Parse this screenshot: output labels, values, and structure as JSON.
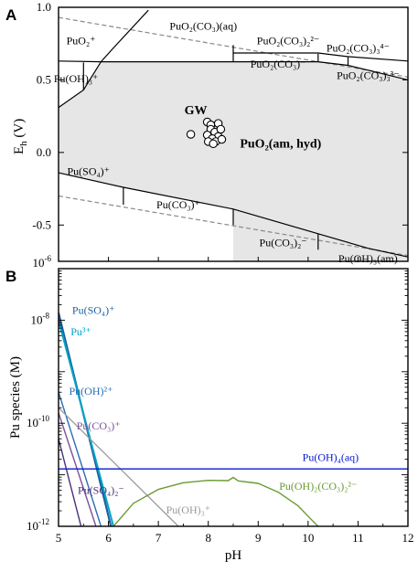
{
  "figure": {
    "panelA_letter": "A",
    "panelB_letter": "B"
  },
  "chart_data": [
    {
      "type": "line",
      "panel": "A",
      "ylabel": "E_h (V)",
      "ylabel_main": "E",
      "ylabel_sub": "h",
      "ylabel_unit": " (V)",
      "xlim": [
        5,
        12
      ],
      "ylim": [
        -0.75,
        1.0
      ],
      "yticks": [
        1.0,
        0.5,
        0.0,
        -0.5
      ],
      "ytick_labels": [
        "1.0",
        "0.5",
        "0.0",
        "-0.5"
      ],
      "bottom_left_label": "10",
      "bottom_left_exp": "-6",
      "grid": false,
      "colors": {
        "field_fill": "#e6e6e6",
        "boundary": "#000000",
        "water_line": "#888888"
      },
      "water_stability_lines": [
        {
          "name": "upper",
          "points": [
            [
              5,
              0.93
            ],
            [
              12,
              0.52
            ]
          ]
        },
        {
          "name": "lower",
          "points": [
            [
              5,
              -0.3
            ],
            [
              12,
              -0.71
            ]
          ]
        }
      ],
      "shaded_field_points": [
        [
          5.85,
          0.625
        ],
        [
          10.2,
          0.625
        ],
        [
          10.8,
          0.6
        ],
        [
          12,
          0.5
        ],
        [
          12,
          -0.75
        ],
        [
          8.5,
          -0.75
        ],
        [
          8.5,
          -0.39
        ],
        [
          6.3,
          -0.24
        ],
        [
          5,
          -0.14
        ],
        [
          5,
          0.31
        ],
        [
          5.5,
          0.43
        ],
        [
          5.85,
          0.625
        ]
      ],
      "boundaries": [
        [
          [
            5.0,
            0.63
          ],
          [
            5.85,
            0.625
          ],
          [
            10.2,
            0.625
          ],
          [
            10.8,
            0.6
          ],
          [
            12,
            0.5
          ]
        ],
        [
          [
            5.0,
            0.31
          ],
          [
            5.5,
            0.43
          ],
          [
            5.85,
            0.625
          ],
          [
            6.1,
            0.72
          ],
          [
            6.8,
            0.98
          ]
        ],
        [
          [
            5.0,
            -0.14
          ],
          [
            6.3,
            -0.24
          ],
          [
            8.5,
            -0.39
          ],
          [
            10.2,
            -0.56
          ],
          [
            11.2,
            -0.66
          ],
          [
            12,
            -0.72
          ]
        ],
        [
          [
            5.5,
            0.43
          ],
          [
            5.5,
            0.62
          ]
        ],
        [
          [
            6.3,
            -0.24
          ],
          [
            6.3,
            -0.36
          ]
        ],
        [
          [
            8.5,
            -0.39
          ],
          [
            8.5,
            -0.5
          ]
        ],
        [
          [
            10.2,
            -0.56
          ],
          [
            10.2,
            -0.67
          ]
        ],
        [
          [
            8.5,
            0.625
          ],
          [
            8.5,
            0.74
          ]
        ],
        [
          [
            10.2,
            0.625
          ],
          [
            10.2,
            0.68
          ]
        ],
        [
          [
            8.5,
            0.685
          ],
          [
            10.2,
            0.685
          ],
          [
            10.8,
            0.66
          ],
          [
            12,
            0.63
          ]
        ],
        [
          [
            10.8,
            0.6
          ],
          [
            10.8,
            0.66
          ]
        ]
      ],
      "field_labels": [
        {
          "text": "PuO₂(CO₃)(aq)",
          "x": 7.9,
          "y": 0.87,
          "bold": false
        },
        {
          "text": "PuO₂⁺",
          "x": 5.45,
          "y": 0.77,
          "bold": false
        },
        {
          "text": "PuO₂(CO₃)₂²⁻",
          "x": 9.6,
          "y": 0.77,
          "bold": false
        },
        {
          "text": "PuO₂(CO₃)₃⁴⁻",
          "x": 11.0,
          "y": 0.72,
          "bold": false
        },
        {
          "text": "PuO₂(CO₃)⁻",
          "x": 9.4,
          "y": 0.61,
          "bold": false
        },
        {
          "text": "PuO₂(CO₃)₃³⁻",
          "x": 11.2,
          "y": 0.53,
          "bold": false
        },
        {
          "text": "Pu(OH)₃⁺",
          "x": 5.35,
          "y": 0.51,
          "bold": false
        },
        {
          "text": "GW",
          "x": 7.75,
          "y": 0.29,
          "bold": true
        },
        {
          "text": "PuO₂(am, hyd)",
          "x": 9.45,
          "y": 0.06,
          "bold": true
        },
        {
          "text": "Pu(SO₄)⁺",
          "x": 5.6,
          "y": -0.13,
          "bold": false
        },
        {
          "text": "Pu(CO₃)⁺",
          "x": 7.4,
          "y": -0.36,
          "bold": false
        },
        {
          "text": "Pu(CO₃)₂⁻",
          "x": 9.5,
          "y": -0.62,
          "bold": false
        },
        {
          "text": "Pu(OH)₃(am)",
          "x": 11.2,
          "y": -0.73,
          "bold": false
        }
      ],
      "gw_points": [
        [
          7.65,
          0.125
        ],
        [
          7.98,
          0.21
        ],
        [
          8.05,
          0.19
        ],
        [
          8.2,
          0.2
        ],
        [
          8.05,
          0.16
        ],
        [
          8.13,
          0.14
        ],
        [
          8.25,
          0.16
        ],
        [
          7.98,
          0.12
        ],
        [
          8.2,
          0.11
        ],
        [
          8.08,
          0.095
        ],
        [
          8.15,
          0.075
        ],
        [
          8.27,
          0.09
        ],
        [
          8.0,
          0.075
        ],
        [
          8.1,
          0.06
        ]
      ]
    },
    {
      "type": "line",
      "panel": "B",
      "ylabel": "Pu species (M)",
      "xlabel": "pH",
      "xlim": [
        5,
        12
      ],
      "xticks": [
        5,
        6,
        7,
        8,
        9,
        10,
        11,
        12
      ],
      "xtick_labels": [
        "5",
        "6",
        "7",
        "8",
        "9",
        "10",
        "11",
        "12"
      ],
      "yscale": "log",
      "ylim": [
        1e-12,
        1e-07
      ],
      "ytick_labels": [
        {
          "base": "10",
          "exp": "-8",
          "value": 1e-08
        },
        {
          "base": "10",
          "exp": "-10",
          "value": 1e-10
        },
        {
          "base": "10",
          "exp": "-12",
          "value": 1e-12
        }
      ],
      "grid": false,
      "series": [
        {
          "name": "Pu(SO₄)⁺",
          "color": "#1f5f9f",
          "width": 2.2,
          "x": [
            5.0,
            6.05
          ],
          "y": [
            1.4e-08,
            1e-12
          ]
        },
        {
          "name": "Pu³⁺",
          "color": "#00a4c4",
          "width": 2.0,
          "x": [
            5.0,
            6.1
          ],
          "y": [
            1e-08,
            1e-12
          ]
        },
        {
          "name": "Pu(OH)²⁺",
          "color": "#2a6db5",
          "width": 1.4,
          "x": [
            5.0,
            5.85
          ],
          "y": [
            4e-10,
            1e-12
          ]
        },
        {
          "name": "Pu(CO₃)⁺",
          "color": "#7a4f9a",
          "width": 1.4,
          "x": [
            5.0,
            5.75
          ],
          "y": [
            1.6e-10,
            1e-12
          ]
        },
        {
          "name": "Pu(SO₄)₂⁻",
          "color": "#4a2f7a",
          "width": 1.4,
          "x": [
            5.0,
            5.45
          ],
          "y": [
            5e-11,
            1e-12
          ]
        },
        {
          "name": "Pu(OH)₃⁺",
          "color": "#9a9a9a",
          "width": 1.3,
          "x": [
            5.0,
            7.4
          ],
          "y": [
            2e-10,
            1e-12
          ]
        },
        {
          "name": "Pu(OH)₄(aq)",
          "color": "#0a1ad0",
          "width": 1.3,
          "x": [
            5.0,
            12.0
          ],
          "y": [
            1.3e-11,
            1.3e-11
          ]
        },
        {
          "name": "Pu(OH)₂(CO₃)₂²⁻",
          "color": "#6a9a32",
          "width": 1.4,
          "x": [
            6.1,
            6.5,
            7.0,
            7.5,
            8.0,
            8.4,
            8.5,
            8.6,
            9.0,
            9.4,
            9.8,
            10.05,
            10.2
          ],
          "y": [
            1e-12,
            2.8e-12,
            5.2e-12,
            7e-12,
            7.8e-12,
            7.7e-12,
            8.9e-12,
            7.6e-12,
            6.8e-12,
            4.6e-12,
            2.5e-12,
            1.4e-12,
            1e-12
          ]
        }
      ],
      "line_labels": [
        {
          "text": "Pu(SO₄)⁺",
          "x": 5.7,
          "y": 1.55e-08,
          "color": "#1f5f9f"
        },
        {
          "text": "Pu³⁺",
          "x": 5.45,
          "y": 6e-09,
          "color": "#00a4c4"
        },
        {
          "text": "Pu(OH)²⁺",
          "x": 5.65,
          "y": 4.2e-10,
          "color": "#2a6db5"
        },
        {
          "text": "Pu(CO₃)⁺",
          "x": 5.8,
          "y": 9e-11,
          "color": "#7a4f9a"
        },
        {
          "text": "Pu(OH)₄(aq)",
          "x": 10.45,
          "y": 2.2e-11,
          "color": "#0a1ad0"
        },
        {
          "text": "Pu(SO₄)₂⁻",
          "x": 5.85,
          "y": 5e-12,
          "color": "#4a2f7a"
        },
        {
          "text": "Pu(OH)₃⁺",
          "x": 7.6,
          "y": 2.1e-12,
          "color": "#9a9a9a"
        },
        {
          "text": "Pu(OH)₂(CO₃)₂²⁻",
          "x": 10.2,
          "y": 6e-12,
          "color": "#6a9a32"
        }
      ]
    }
  ]
}
